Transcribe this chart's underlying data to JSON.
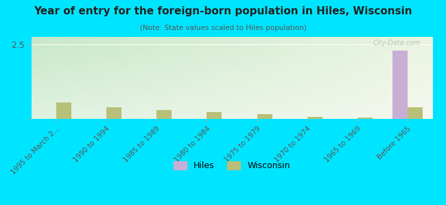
{
  "title": "Year of entry for the foreign-born population in Hiles, Wisconsin",
  "subtitle": "(Note: State values scaled to Hiles population)",
  "categories": [
    "1995 to March 2...",
    "1990 to 1994",
    "1985 to 1989",
    "1980 to 1984",
    "1975 to 1979",
    "1970 to 1974",
    "1965 to 1969",
    "Before 1965"
  ],
  "hiles_values": [
    0,
    0,
    0,
    0,
    0,
    0,
    0,
    2.3
  ],
  "wisconsin_values": [
    0.55,
    0.38,
    0.3,
    0.22,
    0.15,
    0.07,
    0.05,
    0.38
  ],
  "hiles_color": "#c9aed4",
  "wisconsin_color": "#b8bf78",
  "ylim": [
    0,
    2.75
  ],
  "yticks": [
    0,
    2.5
  ],
  "bg_color": "#00e5ff",
  "plot_bg_top": "#c8e8c8",
  "plot_bg_bottom": "#f0f5e8",
  "plot_bg_right": "#f5efe0",
  "watermark": "City-Data.com",
  "bar_width": 0.3
}
